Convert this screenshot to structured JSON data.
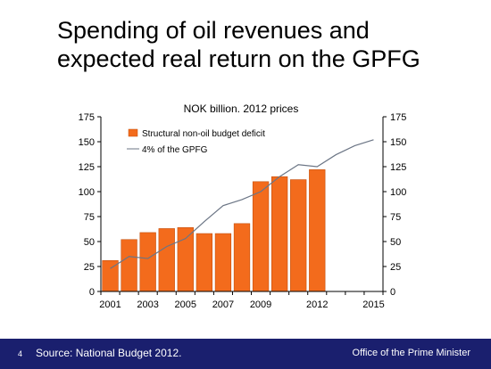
{
  "slide": {
    "title_line1": "Spending of oil revenues and",
    "title_line2": "expected real return on the GPFG",
    "page_number": "4",
    "source": "Source: National Budget 2012.",
    "office": "Office of the Prime Minister"
  },
  "colors": {
    "bar": "#f36b1c",
    "bar_edge": "#c4500e",
    "line": "#6b7585",
    "footer": "#1a1f6e"
  },
  "chart_data": {
    "type": "bar",
    "title": "NOK billion. 2012 prices",
    "ylim": [
      0,
      175
    ],
    "y_ticks": [
      0,
      25,
      50,
      75,
      100,
      125,
      150,
      175
    ],
    "x_tick_labels": [
      "2001",
      "2003",
      "2005",
      "2007",
      "2009",
      "2012",
      "2015"
    ],
    "x_range": [
      2000.5,
      2015.5
    ],
    "grid": false,
    "legend_position": "top-left",
    "series": [
      {
        "name": "Structural non-oil budget deficit",
        "type": "bar",
        "x": [
          2001,
          2002,
          2003,
          2004,
          2005,
          2006,
          2007,
          2008,
          2009,
          2010,
          2011,
          2012
        ],
        "values": [
          31,
          52,
          59,
          63,
          64,
          58,
          58,
          68,
          110,
          115,
          112,
          122
        ]
      },
      {
        "name": "4% of the GPFG",
        "type": "line",
        "x": [
          2001,
          2002,
          2003,
          2004,
          2005,
          2006,
          2007,
          2008,
          2009,
          2010,
          2011,
          2012,
          2013,
          2014,
          2015
        ],
        "values": [
          23,
          35,
          33,
          45,
          53,
          70,
          86,
          92,
          100,
          115,
          127,
          125,
          137,
          146,
          152
        ]
      }
    ]
  }
}
